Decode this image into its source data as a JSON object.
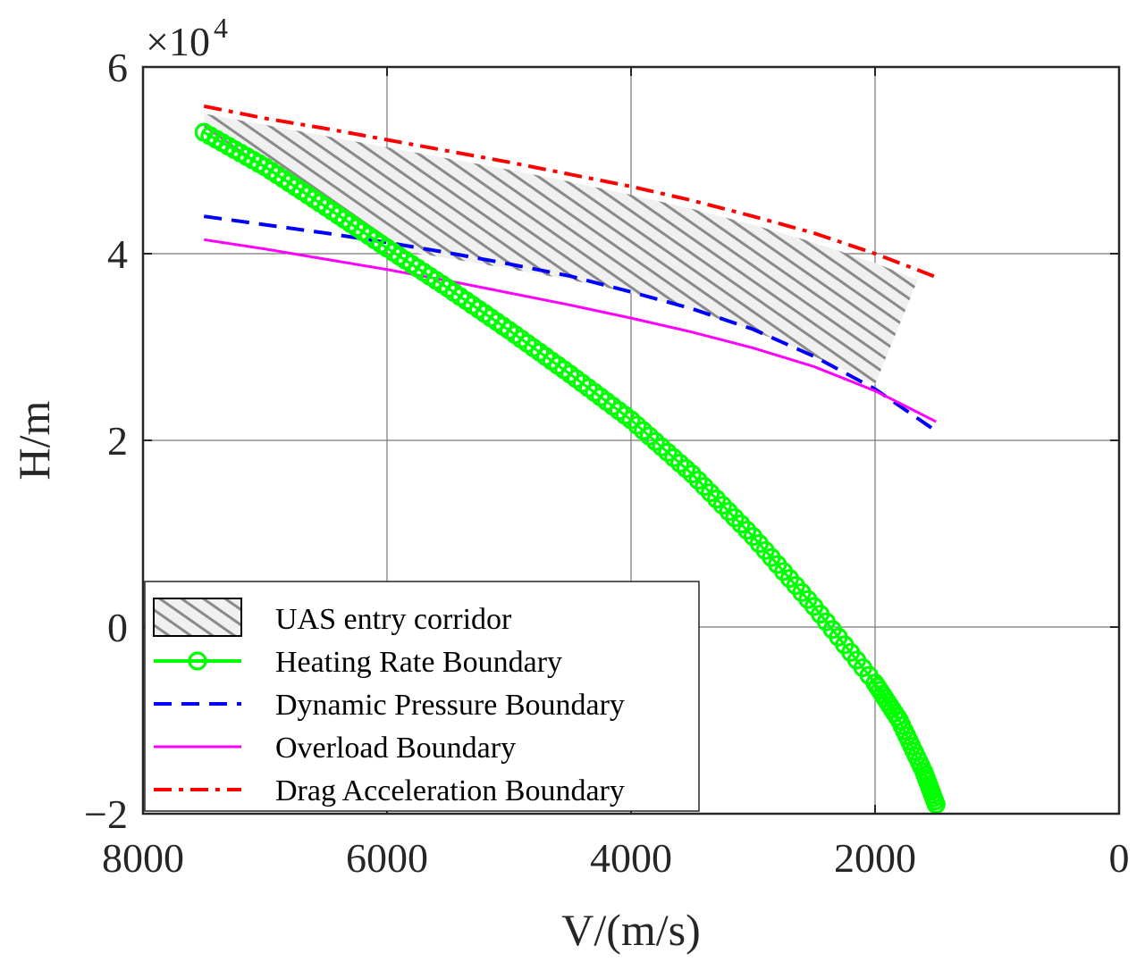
{
  "chart_data": {
    "type": "line",
    "title": "",
    "xlabel": "V/(m/s)",
    "ylabel": "H/m",
    "x_reversed": true,
    "xlim": [
      0,
      8000
    ],
    "ylim": [
      -20000,
      60000
    ],
    "grid": true,
    "y_scale_note": {
      "base": "×10",
      "exponent": "4"
    },
    "x_ticks": [
      {
        "value": 8000,
        "label": "8000"
      },
      {
        "value": 6000,
        "label": "6000"
      },
      {
        "value": 4000,
        "label": "4000"
      },
      {
        "value": 2000,
        "label": "2000"
      },
      {
        "value": 0,
        "label": "0"
      }
    ],
    "y_ticks": [
      {
        "value": 60000,
        "label": "6"
      },
      {
        "value": 40000,
        "label": "4"
      },
      {
        "value": 20000,
        "label": "2"
      },
      {
        "value": 0,
        "label": "0"
      },
      {
        "value": -20000,
        "label": "−2"
      }
    ],
    "legend_position": "bottom-left",
    "legend": [
      {
        "key": "corridor",
        "label": "UAS entry corridor"
      },
      {
        "key": "heating",
        "label": "Heating Rate Boundary"
      },
      {
        "key": "dynamic",
        "label": "Dynamic Pressure Boundary"
      },
      {
        "key": "overload",
        "label": "Overload Boundary"
      },
      {
        "key": "drag",
        "label": "Drag Acceleration Boundary"
      }
    ],
    "series": [
      {
        "key": "drag",
        "name": "Drag Acceleration Boundary",
        "color": "#ff0000",
        "style": "dashdot",
        "x": [
          7500,
          7000,
          6500,
          6000,
          5500,
          5000,
          4500,
          4000,
          3500,
          3000,
          2500,
          2000,
          1800,
          1500
        ],
        "y": [
          55800,
          54500,
          53400,
          52200,
          51000,
          49800,
          48500,
          47200,
          45700,
          44000,
          42200,
          40000,
          39000,
          37500
        ]
      },
      {
        "key": "dynamic",
        "name": "Dynamic Pressure Boundary",
        "color": "#0000ff",
        "style": "dashed",
        "x": [
          7500,
          7000,
          6500,
          6000,
          5500,
          5000,
          4500,
          4000,
          3500,
          3000,
          2500,
          2000,
          1800,
          1500
        ],
        "y": [
          44000,
          43100,
          42200,
          41200,
          40100,
          38900,
          37600,
          35900,
          34100,
          31900,
          29000,
          25500,
          23700,
          21000
        ]
      },
      {
        "key": "overload",
        "name": "Overload Boundary",
        "color": "#ff00ff",
        "style": "solid",
        "x": [
          7500,
          7000,
          6500,
          6000,
          5500,
          5000,
          4500,
          4000,
          3500,
          3000,
          2500,
          2000,
          1800,
          1500
        ],
        "y": [
          41500,
          40500,
          39400,
          38300,
          37100,
          35800,
          34500,
          33100,
          31600,
          29900,
          27900,
          25300,
          24000,
          22000
        ]
      },
      {
        "key": "heating",
        "name": "Heating Rate Boundary",
        "color": "#00ff00",
        "style": "solid-circle-markers",
        "x": [
          7500,
          7000,
          6500,
          6000,
          5500,
          5000,
          4500,
          4000,
          3500,
          3000,
          2500,
          2000,
          1800,
          1600,
          1500
        ],
        "y": [
          53000,
          49300,
          45000,
          40600,
          36300,
          31800,
          27100,
          22200,
          16400,
          9700,
          2200,
          -6000,
          -10000,
          -15500,
          -19000
        ]
      }
    ],
    "corridor": {
      "name": "UAS entry corridor",
      "upper": {
        "x": [
          7500,
          7000,
          6500,
          6000,
          5500,
          5000,
          4500,
          4000,
          3500,
          3000,
          2500,
          2000,
          1650
        ],
        "y": [
          55000,
          53800,
          52600,
          51400,
          50200,
          49000,
          47700,
          46300,
          44800,
          43100,
          41200,
          39000,
          37200
        ]
      },
      "lower": {
        "x": [
          7500,
          7000,
          6500,
          6000,
          5500,
          5000,
          4500,
          4000,
          3500,
          3000,
          2500,
          2000,
          1650
        ],
        "y": [
          53000,
          49300,
          45000,
          40600,
          39500,
          38400,
          37200,
          35800,
          34000,
          31800,
          29000,
          26000,
          37200
        ]
      }
    }
  }
}
